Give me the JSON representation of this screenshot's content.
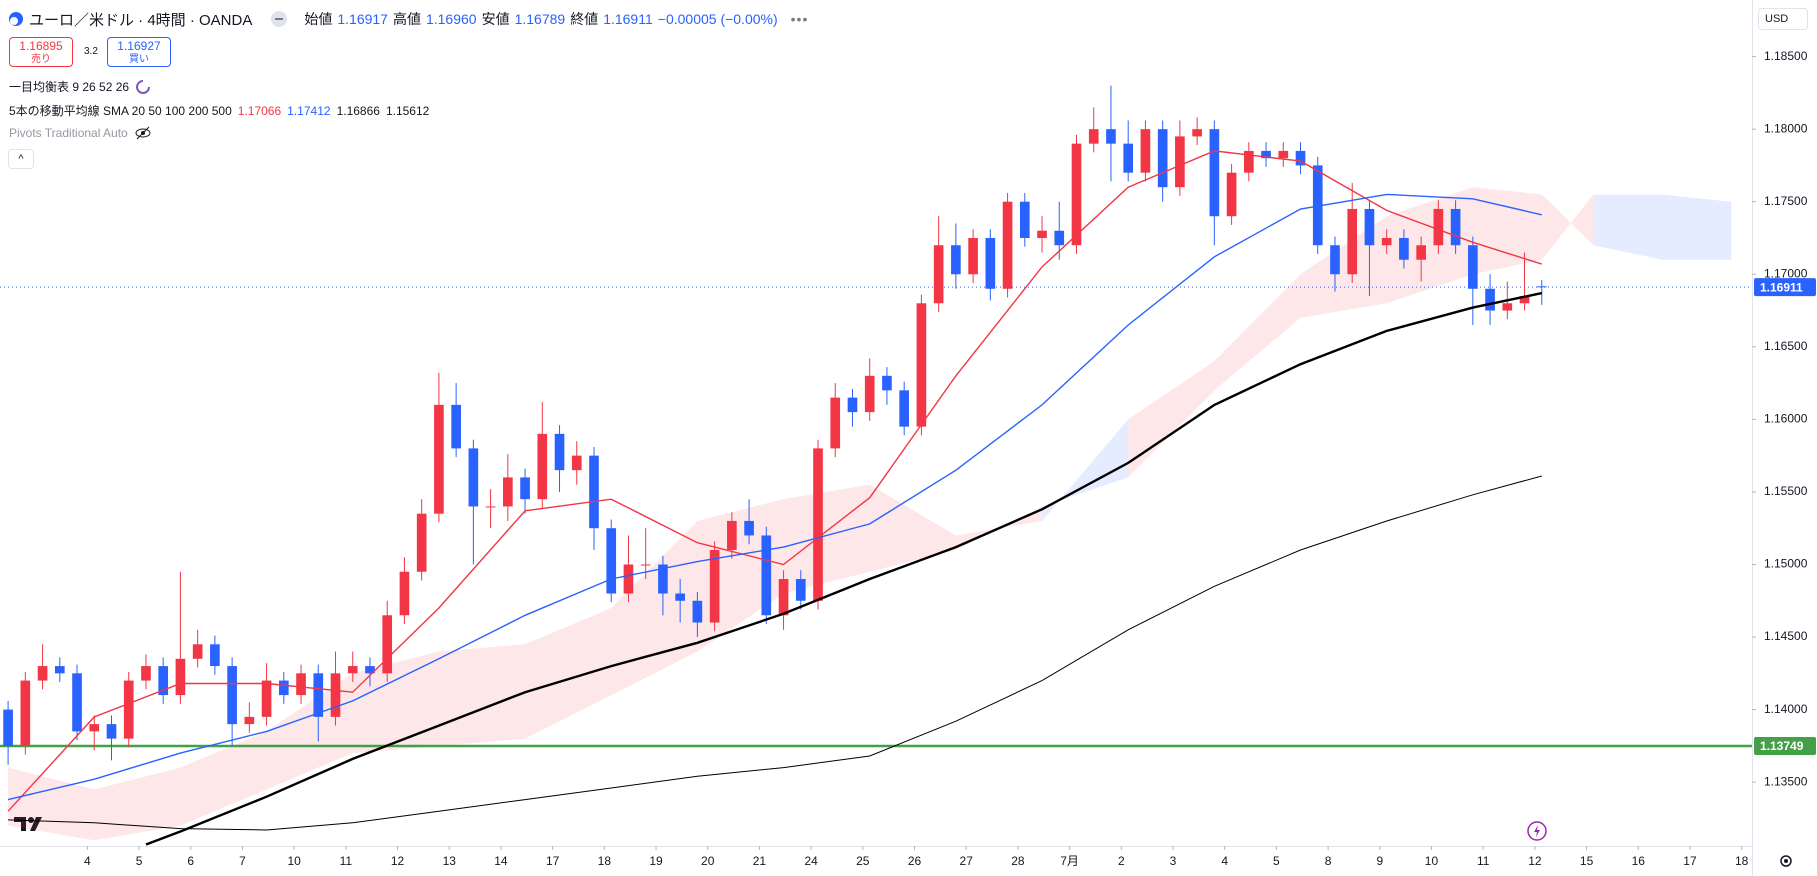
{
  "header": {
    "symbol": "ユーロ／米ドル · 4時間 · OANDA",
    "ohlc": [
      {
        "label": "始値",
        "value": "1.16917"
      },
      {
        "label": "高値",
        "value": "1.16960"
      },
      {
        "label": "安値",
        "value": "1.16789"
      },
      {
        "label": "終値",
        "value": "1.16911"
      }
    ],
    "change": "−0.00005 (−0.00%)"
  },
  "quote": {
    "sell": "1.16895",
    "sell_label": "売り",
    "spread": "3.2",
    "buy": "1.16927",
    "buy_label": "買い"
  },
  "indicators": {
    "ichimoku": "一目均衡表 9 26 52 26",
    "sma": "5本の移動平均線 SMA 20 50 100 200 500",
    "sma_values": [
      {
        "text": "1.17066",
        "color": "#f23645"
      },
      {
        "text": "1.17412",
        "color": "#2962ff"
      },
      {
        "text": "1.16866",
        "color": "#131722"
      },
      {
        "text": "1.15612",
        "color": "#131722"
      }
    ],
    "pivots": "Pivots Traditional Auto"
  },
  "currency": "USD",
  "chart_data": {
    "type": "candlestick",
    "up_color": "#f23645",
    "down_color": "#2962ff",
    "grid": false,
    "xlim": [
      -0.47,
      101.2
    ],
    "ylim": [
      1.1306,
      1.1889
    ],
    "yticks": [
      {
        "value": 1.135,
        "label": "1.13500"
      },
      {
        "value": 1.14,
        "label": "1.14000"
      },
      {
        "value": 1.145,
        "label": "1.14500"
      },
      {
        "value": 1.15,
        "label": "1.15000"
      },
      {
        "value": 1.155,
        "label": "1.15500"
      },
      {
        "value": 1.16,
        "label": "1.16000"
      },
      {
        "value": 1.165,
        "label": "1.16500"
      },
      {
        "value": 1.17,
        "label": "1.17000"
      },
      {
        "value": 1.175,
        "label": "1.17500"
      },
      {
        "value": 1.18,
        "label": "1.18000"
      },
      {
        "value": 1.185,
        "label": "1.18500"
      }
    ],
    "xticks": [
      {
        "value": 4.6,
        "label": "4"
      },
      {
        "value": 7.6,
        "label": "5"
      },
      {
        "value": 10.6,
        "label": "6"
      },
      {
        "value": 13.6,
        "label": "7"
      },
      {
        "value": 16.6,
        "label": "10"
      },
      {
        "value": 19.6,
        "label": "11"
      },
      {
        "value": 22.6,
        "label": "12"
      },
      {
        "value": 25.6,
        "label": "13"
      },
      {
        "value": 28.6,
        "label": "14"
      },
      {
        "value": 31.6,
        "label": "17"
      },
      {
        "value": 34.6,
        "label": "18"
      },
      {
        "value": 37.6,
        "label": "19"
      },
      {
        "value": 40.6,
        "label": "20"
      },
      {
        "value": 43.6,
        "label": "21"
      },
      {
        "value": 46.6,
        "label": "24"
      },
      {
        "value": 49.6,
        "label": "25"
      },
      {
        "value": 52.6,
        "label": "26"
      },
      {
        "value": 55.6,
        "label": "27"
      },
      {
        "value": 58.6,
        "label": "28"
      },
      {
        "value": 61.6,
        "label": "7月"
      },
      {
        "value": 64.6,
        "label": "2"
      },
      {
        "value": 67.6,
        "label": "3"
      },
      {
        "value": 70.6,
        "label": "4"
      },
      {
        "value": 73.6,
        "label": "5"
      },
      {
        "value": 76.6,
        "label": "8"
      },
      {
        "value": 79.6,
        "label": "9"
      },
      {
        "value": 82.6,
        "label": "10"
      },
      {
        "value": 85.6,
        "label": "11"
      },
      {
        "value": 88.6,
        "label": "12"
      },
      {
        "value": 91.6,
        "label": "15"
      },
      {
        "value": 94.6,
        "label": "16"
      },
      {
        "value": 97.6,
        "label": "17"
      },
      {
        "value": 100.6,
        "label": "18"
      }
    ],
    "candles": {
      "x": [
        0,
        1,
        2,
        3,
        4,
        5,
        6,
        7,
        8,
        9,
        10,
        11,
        12,
        13,
        14,
        15,
        16,
        17,
        18,
        19,
        20,
        21,
        22,
        23,
        24,
        25,
        26,
        27,
        28,
        29,
        30,
        31,
        32,
        33,
        34,
        35,
        36,
        37,
        38,
        39,
        40,
        41,
        42,
        43,
        44,
        45,
        46,
        47,
        48,
        49,
        50,
        51,
        52,
        53,
        54,
        55,
        56,
        57,
        58,
        59,
        60,
        61,
        62,
        63,
        64,
        65,
        66,
        67,
        68,
        69,
        70,
        71,
        72,
        73,
        74,
        75,
        76,
        77,
        78,
        79,
        80,
        81,
        82,
        83,
        84,
        85,
        86,
        87,
        88,
        89
      ],
      "open": [
        1.14,
        1.1375,
        1.142,
        1.143,
        1.1425,
        1.1385,
        1.139,
        1.138,
        1.142,
        1.143,
        1.141,
        1.1435,
        1.1445,
        1.143,
        1.139,
        1.1395,
        1.142,
        1.141,
        1.1425,
        1.1395,
        1.1425,
        1.143,
        1.1425,
        1.1465,
        1.1495,
        1.1535,
        1.161,
        1.158,
        1.154,
        1.154,
        1.156,
        1.1545,
        1.159,
        1.1565,
        1.1575,
        1.1525,
        1.148,
        1.15,
        1.15,
        1.148,
        1.1475,
        1.146,
        1.151,
        1.153,
        1.152,
        1.1465,
        1.149,
        1.1475,
        1.158,
        1.1615,
        1.1605,
        1.163,
        1.162,
        1.1595,
        1.168,
        1.172,
        1.17,
        1.1725,
        1.169,
        1.175,
        1.1725,
        1.173,
        1.172,
        1.179,
        1.18,
        1.179,
        1.177,
        1.18,
        1.176,
        1.1795,
        1.18,
        1.174,
        1.177,
        1.1785,
        1.178,
        1.1785,
        1.1775,
        1.172,
        1.17,
        1.1745,
        1.172,
        1.1725,
        1.171,
        1.172,
        1.1745,
        1.172,
        1.169,
        1.1675,
        1.168,
        1.16917
      ],
      "high": [
        1.1406,
        1.1426,
        1.1445,
        1.1436,
        1.1431,
        1.1396,
        1.1396,
        1.1426,
        1.1438,
        1.1436,
        1.1495,
        1.1455,
        1.1451,
        1.1436,
        1.1405,
        1.1432,
        1.1426,
        1.1431,
        1.1431,
        1.144,
        1.144,
        1.1436,
        1.1475,
        1.1505,
        1.1545,
        1.1632,
        1.1625,
        1.1586,
        1.1552,
        1.1576,
        1.1566,
        1.1612,
        1.1596,
        1.1585,
        1.1581,
        1.1531,
        1.152,
        1.1525,
        1.1506,
        1.149,
        1.1481,
        1.1516,
        1.1536,
        1.1545,
        1.1526,
        1.1496,
        1.1496,
        1.1586,
        1.1625,
        1.1621,
        1.1642,
        1.1636,
        1.1626,
        1.1686,
        1.174,
        1.1735,
        1.1731,
        1.1731,
        1.1756,
        1.1756,
        1.174,
        1.175,
        1.1796,
        1.1815,
        1.183,
        1.1806,
        1.1806,
        1.1806,
        1.1806,
        1.1808,
        1.1806,
        1.1776,
        1.1791,
        1.1791,
        1.1791,
        1.1791,
        1.1781,
        1.1726,
        1.1763,
        1.1751,
        1.1731,
        1.1731,
        1.1726,
        1.1751,
        1.1751,
        1.1726,
        1.17,
        1.1695,
        1.1715,
        1.1696
      ],
      "low": [
        1.1362,
        1.1369,
        1.1414,
        1.1419,
        1.1379,
        1.1372,
        1.1365,
        1.1374,
        1.1414,
        1.1404,
        1.1404,
        1.1429,
        1.1424,
        1.1375,
        1.1384,
        1.1389,
        1.1404,
        1.1404,
        1.1378,
        1.1389,
        1.1419,
        1.1416,
        1.1419,
        1.1459,
        1.1489,
        1.1529,
        1.1574,
        1.15,
        1.1525,
        1.153,
        1.1535,
        1.1539,
        1.155,
        1.1555,
        1.151,
        1.1474,
        1.1474,
        1.149,
        1.1465,
        1.146,
        1.145,
        1.1454,
        1.1504,
        1.1514,
        1.1459,
        1.1455,
        1.1469,
        1.1469,
        1.1574,
        1.1595,
        1.1599,
        1.161,
        1.1589,
        1.1589,
        1.1674,
        1.169,
        1.1694,
        1.1682,
        1.1684,
        1.1719,
        1.1715,
        1.171,
        1.1714,
        1.1784,
        1.1764,
        1.1764,
        1.1764,
        1.175,
        1.1754,
        1.1789,
        1.172,
        1.1734,
        1.1764,
        1.1774,
        1.1774,
        1.1769,
        1.1714,
        1.1688,
        1.1694,
        1.1685,
        1.1714,
        1.1704,
        1.1695,
        1.1714,
        1.1714,
        1.1665,
        1.1665,
        1.1669,
        1.1675,
        1.16789
      ],
      "close": [
        1.1375,
        1.142,
        1.143,
        1.1425,
        1.1385,
        1.139,
        1.138,
        1.142,
        1.143,
        1.141,
        1.1435,
        1.1445,
        1.143,
        1.139,
        1.1395,
        1.142,
        1.141,
        1.1425,
        1.1395,
        1.1425,
        1.143,
        1.1425,
        1.1465,
        1.1495,
        1.1535,
        1.161,
        1.158,
        1.154,
        1.154,
        1.156,
        1.1545,
        1.159,
        1.1565,
        1.1575,
        1.1525,
        1.148,
        1.15,
        1.15,
        1.148,
        1.1475,
        1.146,
        1.151,
        1.153,
        1.152,
        1.1465,
        1.149,
        1.1475,
        1.158,
        1.1615,
        1.1605,
        1.163,
        1.162,
        1.1595,
        1.168,
        1.172,
        1.17,
        1.1725,
        1.169,
        1.175,
        1.1725,
        1.173,
        1.172,
        1.179,
        1.18,
        1.179,
        1.177,
        1.18,
        1.176,
        1.1795,
        1.18,
        1.174,
        1.177,
        1.1785,
        1.178,
        1.1785,
        1.1775,
        1.172,
        1.17,
        1.1745,
        1.172,
        1.1725,
        1.171,
        1.172,
        1.1745,
        1.172,
        1.169,
        1.1675,
        1.168,
        1.1685,
        1.16911
      ]
    },
    "lines": [
      {
        "color": "#f23645",
        "width": 1.4,
        "x": [
          0,
          5,
          10,
          15,
          20,
          25,
          30,
          35,
          40,
          45,
          50,
          55,
          60,
          65,
          70,
          75,
          80,
          85,
          89
        ],
        "values": [
          1.133,
          1.1395,
          1.1418,
          1.1418,
          1.1412,
          1.147,
          1.1537,
          1.1545,
          1.1515,
          1.15,
          1.1546,
          1.163,
          1.1705,
          1.176,
          1.1785,
          1.1778,
          1.1744,
          1.1722,
          1.1707
        ]
      },
      {
        "color": "#2962ff",
        "width": 1.4,
        "x": [
          0,
          5,
          10,
          15,
          20,
          25,
          30,
          35,
          40,
          45,
          50,
          55,
          60,
          65,
          70,
          75,
          80,
          85,
          89
        ],
        "values": [
          1.1338,
          1.1352,
          1.137,
          1.1385,
          1.1406,
          1.1435,
          1.1465,
          1.149,
          1.1502,
          1.1512,
          1.1528,
          1.1565,
          1.161,
          1.1665,
          1.1712,
          1.1745,
          1.1755,
          1.1752,
          1.1741
        ]
      },
      {
        "color": "#000000",
        "width": 2.4,
        "x": [
          8,
          10,
          15,
          20,
          25,
          30,
          35,
          40,
          45,
          50,
          55,
          60,
          65,
          70,
          75,
          80,
          85,
          89
        ],
        "values": [
          1.1307,
          1.1316,
          1.134,
          1.1366,
          1.1389,
          1.1412,
          1.143,
          1.1446,
          1.1466,
          1.149,
          1.1512,
          1.1538,
          1.157,
          1.161,
          1.1638,
          1.1661,
          1.1677,
          1.1687
        ]
      },
      {
        "color": "#000000",
        "width": 1,
        "x": [
          0,
          5,
          10,
          15,
          20,
          25,
          30,
          35,
          40,
          45,
          50,
          55,
          60,
          65,
          70,
          75,
          80,
          85,
          89
        ],
        "values": [
          1.1324,
          1.1322,
          1.1318,
          1.1317,
          1.1322,
          1.133,
          1.1338,
          1.1346,
          1.1354,
          1.136,
          1.1368,
          1.1392,
          1.142,
          1.1455,
          1.1485,
          1.151,
          1.153,
          1.1548,
          1.1561
        ]
      }
    ],
    "cloud": {
      "up_color": "rgba(242,54,69,0.12)",
      "down_color": "rgba(41,98,255,0.12)",
      "x": [
        0,
        5,
        10,
        15,
        20,
        25,
        30,
        35,
        40,
        45,
        50,
        55,
        60,
        65,
        70,
        75,
        80,
        85,
        89,
        92,
        96,
        100
      ],
      "span_a": [
        1.136,
        1.1345,
        1.136,
        1.1385,
        1.1425,
        1.144,
        1.1445,
        1.147,
        1.153,
        1.1545,
        1.1555,
        1.152,
        1.153,
        1.16,
        1.164,
        1.17,
        1.174,
        1.176,
        1.1755,
        1.172,
        1.171,
        1.171
      ],
      "span_b": [
        1.132,
        1.131,
        1.132,
        1.1345,
        1.137,
        1.1375,
        1.138,
        1.141,
        1.144,
        1.148,
        1.1495,
        1.151,
        1.154,
        1.156,
        1.162,
        1.167,
        1.168,
        1.17,
        1.171,
        1.1755,
        1.1755,
        1.175
      ]
    },
    "hlines": [
      {
        "value": 1.13749,
        "label": "1.13749",
        "color": "#43a047",
        "dash": false
      },
      {
        "value": 1.16911,
        "label": "1.16911",
        "color": "#2962ff",
        "dash": true
      }
    ]
  }
}
